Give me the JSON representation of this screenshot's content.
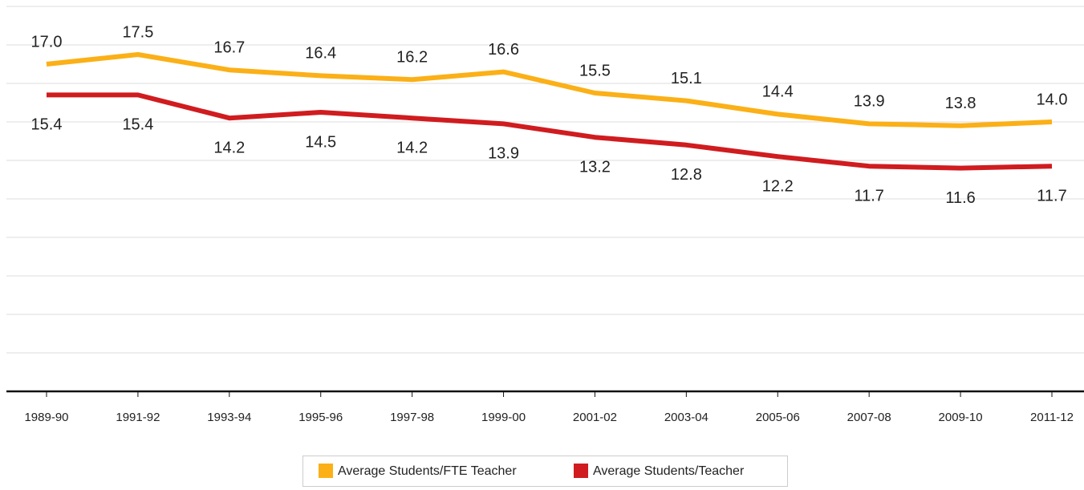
{
  "chart_data": {
    "type": "line",
    "categories": [
      "1989-90",
      "1991-92",
      "1993-94",
      "1995-96",
      "1997-98",
      "1999-00",
      "2001-02",
      "2003-04",
      "2005-06",
      "2007-08",
      "2009-10",
      "2011-12"
    ],
    "series": [
      {
        "name": "Average Students/FTE Teacher",
        "color": "#fbb017",
        "label_position": "above",
        "values": [
          17.0,
          17.5,
          16.7,
          16.4,
          16.2,
          16.6,
          15.5,
          15.1,
          14.4,
          13.9,
          13.8,
          14.0
        ],
        "value_labels": [
          "17.0",
          "17.5",
          "16.7",
          "16.4",
          "16.2",
          "16.6",
          "15.5",
          "15.1",
          "14.4",
          "13.9",
          "13.8",
          "14.0"
        ]
      },
      {
        "name": "Average Students/Teacher",
        "color": "#d01c1f",
        "label_position": "below",
        "values": [
          15.4,
          15.4,
          14.2,
          14.5,
          14.2,
          13.9,
          13.2,
          12.8,
          12.2,
          11.7,
          11.6,
          11.7
        ],
        "value_labels": [
          "15.4",
          "15.4",
          "14.2",
          "14.5",
          "14.2",
          "13.9",
          "13.2",
          "12.8",
          "12.2",
          "11.7",
          "11.6",
          "11.7"
        ]
      }
    ],
    "ylim": [
      0,
      20
    ],
    "yticks": [
      0,
      2,
      4,
      6,
      8,
      10,
      12,
      14,
      16,
      18,
      20
    ],
    "grid": true,
    "legend": "bottom"
  }
}
